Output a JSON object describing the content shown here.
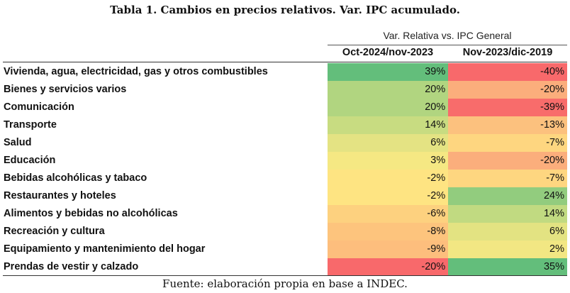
{
  "title": "Tabla 1. Cambios en precios relativos.  Var. IPC acumulado.",
  "table": {
    "group_header": "Var. Relativa vs. IPC General",
    "columns": [
      "Oct-2024/nov-2023",
      "Nov-2023/dic-2019"
    ],
    "rows": [
      {
        "category": "Vivienda, agua, electricidad, gas y otros combustibles",
        "values": [
          "39%",
          "-40%"
        ],
        "colors": [
          "#63be7b",
          "#f8696b"
        ]
      },
      {
        "category": "Bienes y servicios varios",
        "values": [
          "20%",
          "-20%"
        ],
        "colors": [
          "#b1d580",
          "#fbae7c"
        ]
      },
      {
        "category": "Comunicación",
        "values": [
          "20%",
          "-39%"
        ],
        "colors": [
          "#b1d580",
          "#f86c6b"
        ]
      },
      {
        "category": "Transporte",
        "values": [
          "14%",
          "-13%"
        ],
        "colors": [
          "#c8dc81",
          "#fcc17e"
        ]
      },
      {
        "category": "Salud",
        "values": [
          "6%",
          "-7%"
        ],
        "colors": [
          "#e4e383",
          "#fed680"
        ]
      },
      {
        "category": "Educación",
        "values": [
          "3%",
          "-20%"
        ],
        "colors": [
          "#f5e883",
          "#fbae7c"
        ]
      },
      {
        "category": "Bebidas alcohólicas y tabaco",
        "values": [
          "-2%",
          "-7%"
        ],
        "colors": [
          "#fee482",
          "#fed680"
        ]
      },
      {
        "category": "Restaurantes y hoteles",
        "values": [
          "-2%",
          "24%"
        ],
        "colors": [
          "#fee482",
          "#92cc7e"
        ]
      },
      {
        "category": "Alimentos y bebidas no alcohólicas",
        "values": [
          "-6%",
          "14%"
        ],
        "colors": [
          "#fdd17f",
          "#c1da81"
        ]
      },
      {
        "category": "Recreación y cultura",
        "values": [
          "-8%",
          "6%"
        ],
        "colors": [
          "#fdc47d",
          "#e3e382"
        ]
      },
      {
        "category": "Equipamiento y mantenimiento del hogar",
        "values": [
          "-9%",
          "2%"
        ],
        "colors": [
          "#fdbe7d",
          "#f2e783"
        ]
      },
      {
        "category": "Prendas de vestir y calzado",
        "values": [
          "-20%",
          "35%"
        ],
        "colors": [
          "#f8696b",
          "#63be7b"
        ]
      }
    ]
  },
  "source": "Fuente: elaboración propia en base a INDEC."
}
